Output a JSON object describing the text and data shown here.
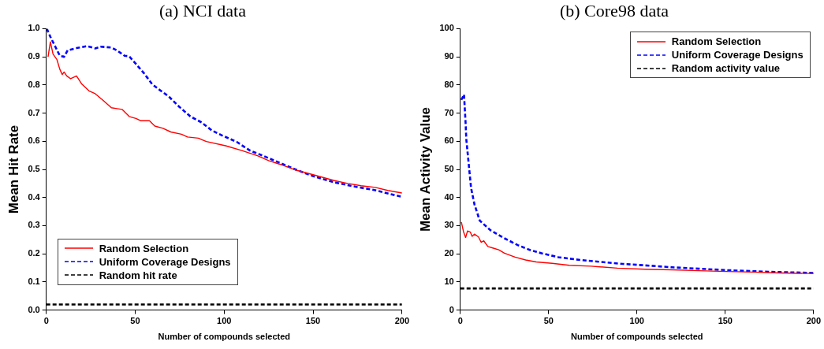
{
  "chart_data": [
    {
      "type": "line",
      "title": "(a) NCI data",
      "xlabel": "Number of compounds selected",
      "ylabel": "Mean Hit Rate",
      "xlim": [
        0,
        200
      ],
      "xticks": [
        0,
        50,
        100,
        150,
        200
      ],
      "ylim": [
        0,
        1
      ],
      "yticks": [
        {
          "value": 0,
          "label": "0.0"
        },
        {
          "value": 0.1,
          "label": "0.1"
        },
        {
          "value": 0.2,
          "label": "0.2"
        },
        {
          "value": 0.3,
          "label": "0.3"
        },
        {
          "value": 0.4,
          "label": "0.4"
        },
        {
          "value": 0.5,
          "label": "0.5"
        },
        {
          "value": 0.6,
          "label": "0.6"
        },
        {
          "value": 0.7,
          "label": "0.7"
        },
        {
          "value": 0.8,
          "label": "0.8"
        },
        {
          "value": 0.9,
          "label": "0.9"
        },
        {
          "value": 1,
          "label": "1.0"
        }
      ],
      "grid": false,
      "legend": "bottom left",
      "marker": "none",
      "series": [
        {
          "name": "Random Selection",
          "color": "#ff0000",
          "line_style": "solid",
          "x": [
            1,
            2.3,
            3.8,
            6,
            7.6,
            9,
            10,
            11.5,
            13.7,
            17,
            20,
            24,
            27.5,
            32,
            36.6,
            39.7,
            42.7,
            46.6,
            50.4,
            53,
            58,
            61,
            65.6,
            70,
            76,
            79.4,
            85.5,
            90,
            100.8,
            110,
            119,
            125,
            131,
            140,
            150,
            162,
            169.5,
            177,
            185,
            192,
            200
          ],
          "values": [
            0.9,
            0.953,
            0.91,
            0.89,
            0.856,
            0.837,
            0.846,
            0.832,
            0.822,
            0.832,
            0.803,
            0.779,
            0.769,
            0.745,
            0.719,
            0.716,
            0.713,
            0.688,
            0.681,
            0.673,
            0.673,
            0.654,
            0.646,
            0.633,
            0.625,
            0.615,
            0.611,
            0.599,
            0.584,
            0.567,
            0.548,
            0.531,
            0.519,
            0.498,
            0.481,
            0.46,
            0.45,
            0.442,
            0.436,
            0.425,
            0.416
          ]
        },
        {
          "name": "Uniform Coverage Designs",
          "color": "#0000ff",
          "line_style": "dashed",
          "x": [
            0.3,
            2.3,
            4.6,
            7.6,
            10,
            12,
            17,
            23,
            27.5,
            30.5,
            36.6,
            39.7,
            44,
            46.6,
            50.4,
            55,
            59.5,
            64,
            68.7,
            75,
            81,
            87,
            93,
            99,
            107,
            114.5,
            122,
            131,
            140,
            150,
            162,
            172.5,
            185,
            200
          ],
          "values": [
            1,
            0.971,
            0.942,
            0.904,
            0.9,
            0.923,
            0.931,
            0.938,
            0.93,
            0.936,
            0.933,
            0.923,
            0.904,
            0.902,
            0.875,
            0.841,
            0.803,
            0.781,
            0.76,
            0.721,
            0.688,
            0.668,
            0.639,
            0.62,
            0.598,
            0.567,
            0.548,
            0.524,
            0.5,
            0.476,
            0.454,
            0.44,
            0.426,
            0.402
          ]
        },
        {
          "name": "Random hit rate",
          "color": "#000000",
          "line_style": "dashed",
          "x": [
            0,
            200
          ],
          "values": [
            0.02,
            0.02
          ]
        }
      ]
    },
    {
      "type": "line",
      "title": "(b) Core98 data",
      "xlabel": "Number of compounds selected",
      "ylabel": "Mean Activity Value",
      "xlim": [
        0,
        200
      ],
      "xticks": [
        0,
        50,
        100,
        150,
        200
      ],
      "ylim": [
        0,
        100
      ],
      "yticks": [
        0,
        10,
        20,
        30,
        40,
        50,
        60,
        70,
        80,
        90,
        100
      ],
      "grid": false,
      "legend": "top right",
      "marker": "none",
      "series": [
        {
          "name": "Random Selection",
          "color": "#ff0000",
          "line_style": "solid",
          "x": [
            0.6,
            1.8,
            3,
            4.1,
            5.7,
            6.7,
            8,
            10.3,
            11.8,
            13.3,
            15.6,
            18.7,
            21.8,
            25,
            31,
            37,
            43,
            52,
            61.7,
            74,
            89,
            104.6,
            120,
            135,
            150.6,
            166,
            181,
            200
          ],
          "values": [
            31.3,
            27.9,
            25.8,
            28.1,
            27.7,
            26.2,
            27,
            26,
            24.1,
            24.6,
            22.6,
            22,
            21.4,
            20.2,
            18.8,
            17.8,
            17.1,
            16.6,
            15.9,
            15.6,
            14.9,
            14.5,
            14.3,
            14,
            13.7,
            13.5,
            13.2,
            13
          ]
        },
        {
          "name": "Uniform Coverage Designs",
          "color": "#0000ff",
          "line_style": "dashed",
          "x": [
            0.6,
            2.1,
            3,
            3.4,
            4.9,
            6.1,
            8,
            11,
            17,
            25,
            32.5,
            40,
            46,
            55.5,
            68,
            80,
            92,
            104.6,
            120,
            135,
            150.6,
            166,
            181,
            200
          ],
          "values": [
            74.7,
            76.6,
            66.5,
            60.7,
            51,
            43.4,
            37.6,
            31.8,
            28.4,
            25.5,
            23.1,
            21.2,
            20.2,
            18.8,
            17.8,
            17.1,
            16.4,
            15.9,
            15.2,
            14.7,
            14.2,
            13.8,
            13.5,
            13.2
          ]
        },
        {
          "name": "Random activity value",
          "color": "#000000",
          "line_style": "dashed",
          "x": [
            0,
            200
          ],
          "values": [
            7.7,
            7.7
          ]
        }
      ]
    }
  ]
}
